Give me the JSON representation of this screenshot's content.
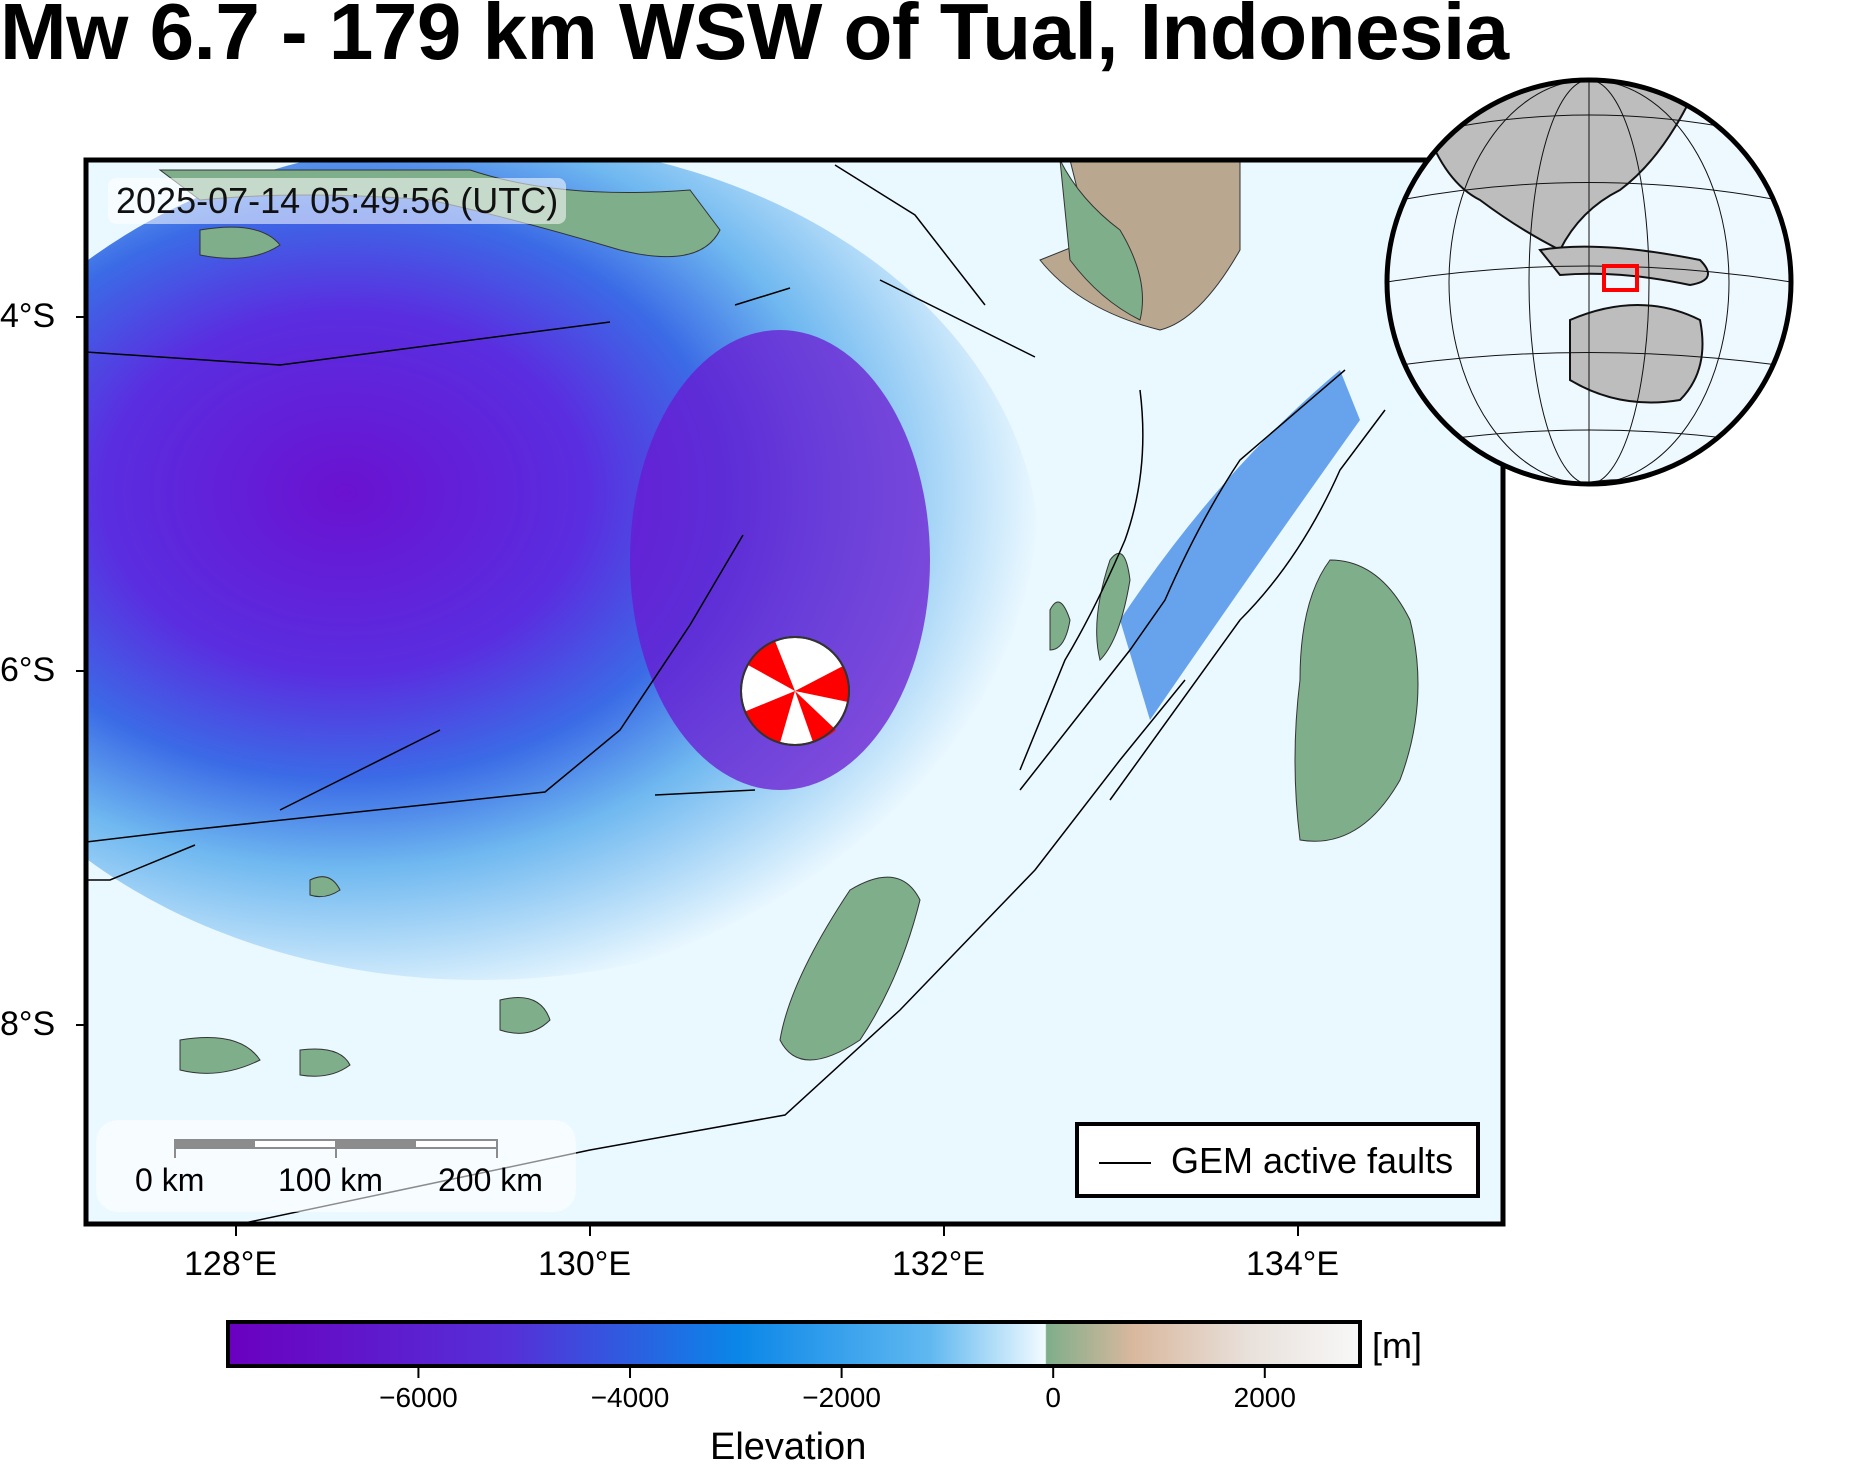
{
  "title": "Mw 6.7 - 179 km WSW of Tual, Indonesia",
  "timestamp": "2025-07-14 05:49:56 (UTC)",
  "lat_ticks": [
    {
      "value": -4,
      "label": "4°S"
    },
    {
      "value": -6,
      "label": "6°S"
    },
    {
      "value": -8,
      "label": "8°S"
    }
  ],
  "lon_ticks": [
    {
      "value": 128,
      "label": "128°E"
    },
    {
      "value": 130,
      "label": "130°E"
    },
    {
      "value": 132,
      "label": "132°E"
    },
    {
      "value": 134,
      "label": "134°E"
    }
  ],
  "legend": {
    "fault_label": "GEM active faults"
  },
  "scale_bar": {
    "labels": [
      "0 km",
      "100 km",
      "200 km"
    ]
  },
  "colorbar": {
    "title": "Elevation",
    "unit": "[m]",
    "range": [
      -7800,
      2900
    ],
    "ticks": [
      {
        "value": -6000,
        "label": "−6000"
      },
      {
        "value": -4000,
        "label": "−4000"
      },
      {
        "value": -2000,
        "label": "−2000"
      },
      {
        "value": 0,
        "label": "0"
      },
      {
        "value": 2000,
        "label": "2000"
      }
    ]
  },
  "earthquake": {
    "lat": -6.1,
    "lon": 131.2
  },
  "colors": {
    "deep": "#6a00c8",
    "mid": "#1e6fe0",
    "shallow": "#eaf8ff",
    "land": "#7fae8a",
    "beachball": "#ff0000",
    "locator_box": "#ff0000"
  }
}
